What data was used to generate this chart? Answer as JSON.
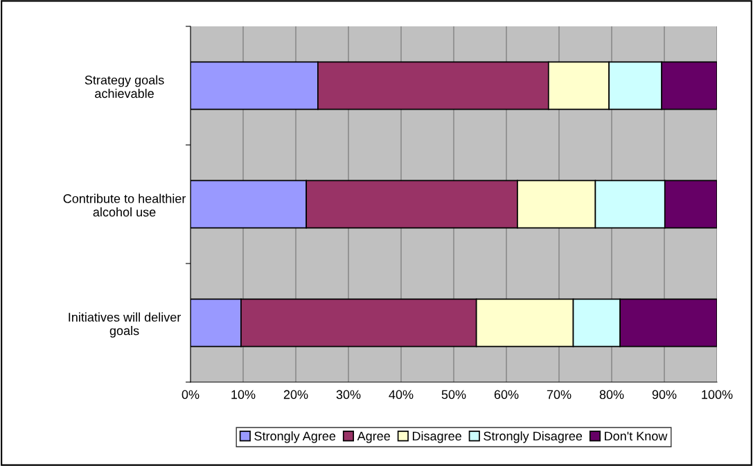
{
  "chart_data": {
    "type": "bar",
    "orientation": "horizontal",
    "stacked": true,
    "categories": [
      "Strategy goals\nachievable",
      "Contribute to healthier\nalcohol use",
      "Initiatives will deliver\ngoals"
    ],
    "series": [
      {
        "name": "Strongly Agree",
        "color": "#9999ff",
        "values": [
          24.2,
          22.0,
          9.6
        ]
      },
      {
        "name": "Agree",
        "color": "#993366",
        "values": [
          43.8,
          40.1,
          44.7
        ]
      },
      {
        "name": "Disagree",
        "color": "#ffffcc",
        "values": [
          11.5,
          14.8,
          18.4
        ]
      },
      {
        "name": "Strongly Disagree",
        "color": "#ccffff",
        "values": [
          10.0,
          13.2,
          8.9
        ]
      },
      {
        "name": "Don't Know",
        "color": "#660066",
        "values": [
          10.5,
          9.9,
          18.4
        ]
      }
    ],
    "xlim": [
      0,
      100
    ],
    "xticks": [
      {
        "value": 0,
        "label": "0%"
      },
      {
        "value": 10,
        "label": "10%"
      },
      {
        "value": 20,
        "label": "20%"
      },
      {
        "value": 30,
        "label": "30%"
      },
      {
        "value": 40,
        "label": "40%"
      },
      {
        "value": 50,
        "label": "50%"
      },
      {
        "value": 60,
        "label": "60%"
      },
      {
        "value": 70,
        "label": "70%"
      },
      {
        "value": 80,
        "label": "80%"
      },
      {
        "value": 90,
        "label": "90%"
      },
      {
        "value": 100,
        "label": "100%"
      }
    ],
    "grid": "x",
    "legend": "bottom"
  }
}
